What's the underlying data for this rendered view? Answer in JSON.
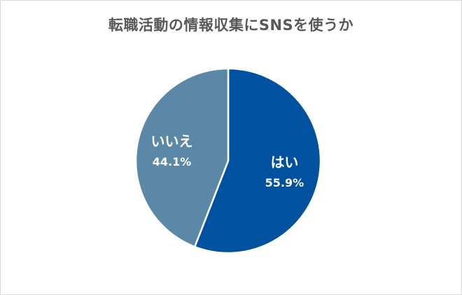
{
  "chart_data": {
    "type": "pie",
    "title": "転職活動の情報収集にSNSを使うか",
    "slices": [
      {
        "label": "はい",
        "value": 55.9,
        "value_label": "55.9%",
        "color": "#0052A0"
      },
      {
        "label": "いいえ",
        "value": 44.1,
        "value_label": "44.1%",
        "color": "#5C88A8"
      }
    ],
    "start_angle": "12 o'clock",
    "direction": "clockwise",
    "legend": "none",
    "separator_color": "#ffffff"
  }
}
